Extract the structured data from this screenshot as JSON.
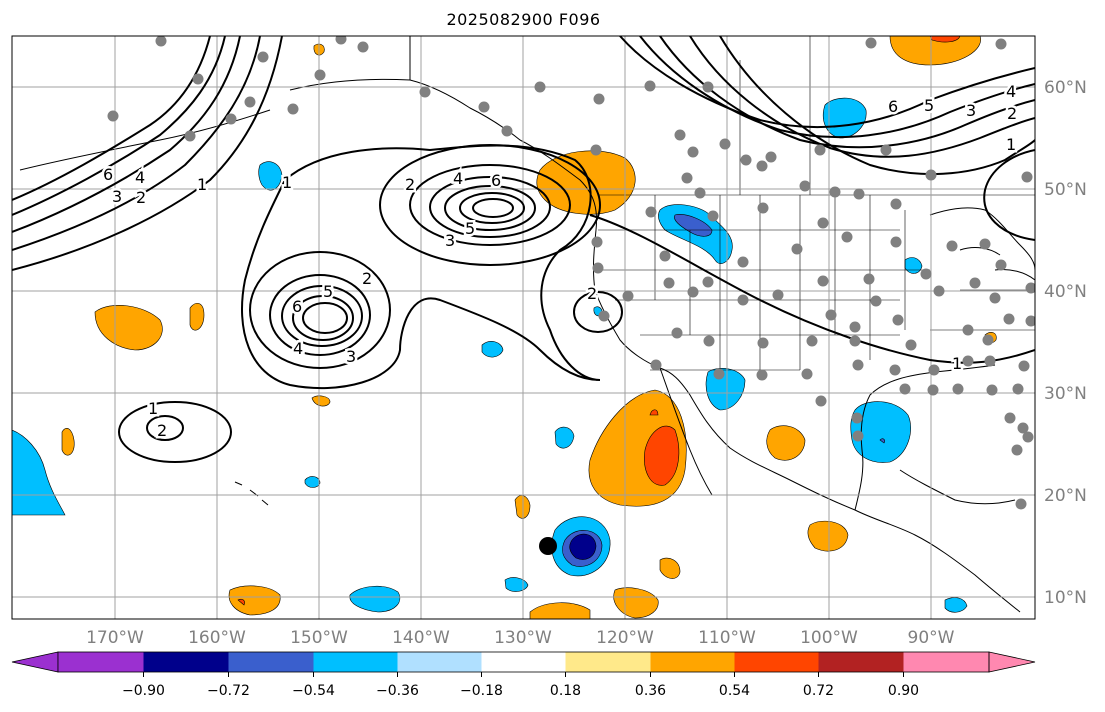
{
  "title": "2025082900 F096",
  "latitude_labels": [
    "60°N",
    "50°N",
    "40°N",
    "30°N",
    "20°N",
    "10°N"
  ],
  "longitude_labels": [
    "170°W",
    "160°W",
    "150°W",
    "140°W",
    "130°W",
    "120°W",
    "110°W",
    "100°W",
    "90°W"
  ],
  "colorbar": {
    "ticks": [
      "−0.90",
      "−0.72",
      "−0.54",
      "−0.36",
      "−0.18",
      "0.18",
      "0.36",
      "0.54",
      "0.72",
      "0.90"
    ],
    "colors": [
      "#9b30d0",
      "#00008b",
      "#3a5fcd",
      "#00bfff",
      "#b0e0ff",
      "#ffffff",
      "#ffe98a",
      "#ffa500",
      "#ff4500",
      "#b22222",
      "#ff88b0"
    ]
  },
  "contour_labels": {
    "a": "6",
    "b": "4",
    "c": "3",
    "d": "2",
    "e": "1",
    "f": "2",
    "g": "4",
    "h": "6",
    "i": "5",
    "j": "3",
    "k": "6",
    "l": "5",
    "m": "4",
    "n": "3",
    "o": "2",
    "p": "1",
    "q": "2",
    "r": "1",
    "s": "2",
    "t": "6",
    "u": "5",
    "v": "3",
    "w": "4",
    "x": "2",
    "y": "1",
    "z": "1"
  }
}
